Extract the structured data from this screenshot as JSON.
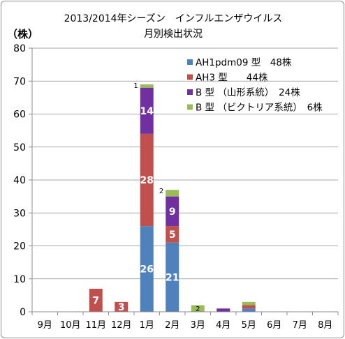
{
  "chart_data": {
    "type": "bar",
    "stacked": true,
    "title": [
      "2013/2014年シーズン　インフルエンザウイルス",
      "月別検出状況"
    ],
    "ylabel": "（株）",
    "ylim": [
      0,
      80
    ],
    "yticks": [
      0,
      10,
      20,
      30,
      40,
      50,
      60,
      70,
      80
    ],
    "grid": true,
    "legend_position": "top-right",
    "categories": [
      "9月",
      "10月",
      "11月",
      "12月",
      "1月",
      "2月",
      "3月",
      "4月",
      "5月",
      "6月",
      "7月",
      "8月"
    ],
    "series": [
      {
        "name": "AH1pdm09 型　48株",
        "color": "#4f81bd",
        "values": [
          0,
          0,
          0,
          0,
          26,
          21,
          0,
          0,
          1,
          0,
          0,
          0
        ]
      },
      {
        "name": "AH3 型　　44株",
        "color": "#c0504d",
        "values": [
          0,
          0,
          7,
          3,
          28,
          5,
          0,
          0,
          1,
          0,
          0,
          0
        ]
      },
      {
        "name": "B 型 （山形系統）　24株",
        "color": "#7030a0",
        "values": [
          0,
          0,
          0,
          0,
          14,
          9,
          0,
          1,
          0,
          0,
          0,
          0
        ]
      },
      {
        "name": "B 型 （ビクトリア系統）　6株",
        "color": "#9bbb59",
        "values": [
          0,
          0,
          0,
          0,
          1,
          2,
          2,
          0,
          1,
          0,
          0,
          0
        ]
      }
    ]
  }
}
